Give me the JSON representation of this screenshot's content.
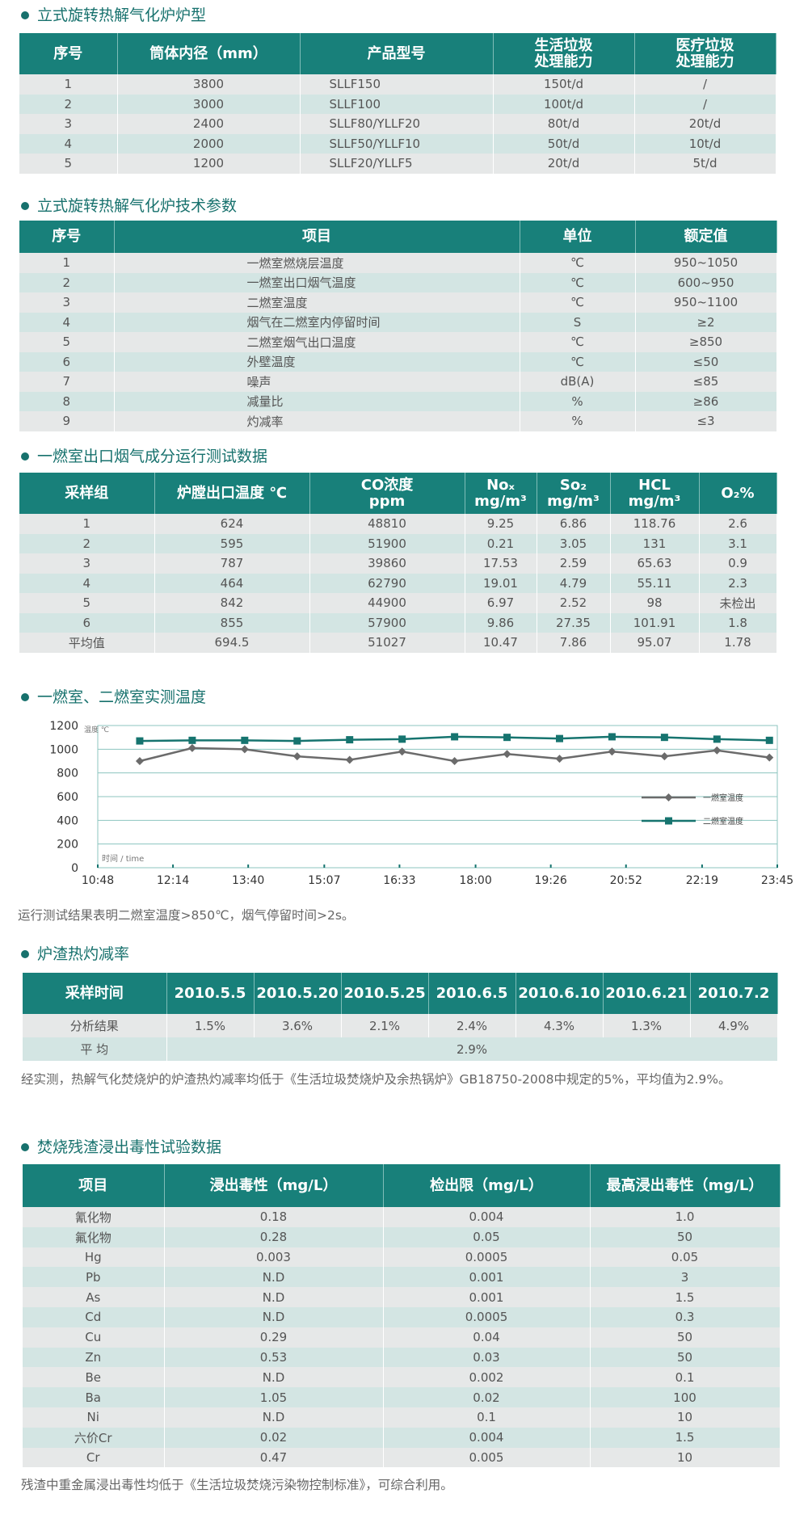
{
  "models": {
    "title": "立式旋转热解气化炉炉型",
    "header": [
      "序号",
      "筒体内径（mm）",
      "产品型号",
      "生活垃圾\n处理能力",
      "医疗垃圾\n处理能力"
    ],
    "rows": [
      [
        "1",
        "3800",
        "SLLF150",
        "150t/d",
        "/"
      ],
      [
        "2",
        "3000",
        "SLLF100",
        "100t/d",
        "/"
      ],
      [
        "3",
        "2400",
        "SLLF80/YLLF20",
        "80t/d",
        "20t/d"
      ],
      [
        "4",
        "2000",
        "SLLF50/YLLF10",
        "50t/d",
        "10t/d"
      ],
      [
        "5",
        "1200",
        "SLLF20/YLLF5",
        "20t/d",
        "5t/d"
      ]
    ]
  },
  "params": {
    "title": "立式旋转热解气化炉技术参数",
    "header": [
      "序号",
      "项目",
      "单位",
      "额定值"
    ],
    "rows": [
      [
        "1",
        "一燃室燃烧层温度",
        "℃",
        "950~1050"
      ],
      [
        "2",
        "一燃室出口烟气温度",
        "℃",
        "600~950"
      ],
      [
        "3",
        "二燃室温度",
        "℃",
        "950~1100"
      ],
      [
        "4",
        "烟气在二燃室内停留时间",
        "S",
        "≥2"
      ],
      [
        "5",
        "二燃室烟气出口温度",
        "℃",
        "≥850"
      ],
      [
        "6",
        "外壁温度",
        "℃",
        "≤50"
      ],
      [
        "7",
        "噪声",
        "dB(A)",
        "≤85"
      ],
      [
        "8",
        "减量比",
        "%",
        "≥86"
      ],
      [
        "9",
        "灼减率",
        "%",
        "≤3"
      ]
    ]
  },
  "flue_gas": {
    "title": "一燃室出口烟气成分运行测试数据",
    "header": [
      "采样组",
      "炉膛出口温度 ℃",
      "CO浓度\nppm",
      "Noₓ\nmg/m³",
      "So₂\nmg/m³",
      "HCL\nmg/m³",
      "O₂%"
    ],
    "rows": [
      [
        "1",
        "624",
        "48810",
        "9.25",
        "6.86",
        "118.76",
        "2.6"
      ],
      [
        "2",
        "595",
        "51900",
        "0.21",
        "3.05",
        "131",
        "3.1"
      ],
      [
        "3",
        "787",
        "39860",
        "17.53",
        "2.59",
        "65.63",
        "0.9"
      ],
      [
        "4",
        "464",
        "62790",
        "19.01",
        "4.79",
        "55.11",
        "2.3"
      ],
      [
        "5",
        "842",
        "44900",
        "6.97",
        "2.52",
        "98",
        "未检出"
      ],
      [
        "6",
        "855",
        "57900",
        "9.86",
        "27.35",
        "101.91",
        "1.8"
      ],
      [
        "平均值",
        "694.5",
        "51027",
        "10.47",
        "7.86",
        "95.07",
        "1.78"
      ]
    ]
  },
  "chart_data": {
    "type": "line",
    "title": "一燃室、二燃室实测温度",
    "xlabel": "时间 / time",
    "ylabel": "温度 ℃",
    "x": [
      696,
      756,
      816,
      876,
      936,
      996,
      1056,
      1116,
      1176,
      1236,
      1296,
      1356,
      1416
    ],
    "xlim": [
      648,
      1425
    ],
    "xticks": [
      {
        "value": 648,
        "label": "10:48"
      },
      {
        "value": 734,
        "label": "12:14"
      },
      {
        "value": 820,
        "label": "13:40"
      },
      {
        "value": 907,
        "label": "15:07"
      },
      {
        "value": 993,
        "label": "16:33"
      },
      {
        "value": 1080,
        "label": "18:00"
      },
      {
        "value": 1166,
        "label": "19:26"
      },
      {
        "value": 1252,
        "label": "20:52"
      },
      {
        "value": 1339,
        "label": "22:19"
      },
      {
        "value": 1425,
        "label": "23:45"
      }
    ],
    "ylim": [
      0,
      1200
    ],
    "yticks": [
      0,
      200,
      400,
      600,
      800,
      1000,
      1200
    ],
    "grid": true,
    "legend": "right",
    "series": [
      {
        "name": "一燃室温度",
        "color": "#6b6b6b",
        "marker": "diamond",
        "values": [
          900,
          1010,
          1000,
          940,
          910,
          980,
          900,
          960,
          920,
          980,
          940,
          990,
          930
        ]
      },
      {
        "name": "二燃室温度",
        "color": "#16746f",
        "marker": "square",
        "values": [
          1070,
          1075,
          1075,
          1070,
          1080,
          1085,
          1105,
          1100,
          1090,
          1105,
          1100,
          1085,
          1075
        ]
      }
    ],
    "note": "运行测试结果表明二燃室温度>850℃，烟气停留时间>2s。"
  },
  "slag": {
    "title": "炉渣热灼减率",
    "header": [
      "采样时间",
      "2010.5.5",
      "2010.5.20",
      "2010.5.25",
      "2010.6.5",
      "2010.6.10",
      "2010.6.21",
      "2010.7.2"
    ],
    "rows": [
      [
        "分析结果",
        "1.5%",
        "3.6%",
        "2.1%",
        "2.4%",
        "4.3%",
        "1.3%",
        "4.9%"
      ],
      [
        "平 均",
        "2.9%"
      ]
    ],
    "note": "经实测，热解气化焚烧炉的炉渣热灼减率均低于《生活垃圾焚烧炉及余热锅炉》GB18750-2008中规定的5%，平均值为2.9%。"
  },
  "leaching": {
    "title": "焚烧残渣浸出毒性试验数据",
    "header": [
      "项目",
      "浸出毒性（mg/L）",
      "检出限（mg/L）",
      "最高浸出毒性（mg/L）"
    ],
    "rows": [
      [
        "氰化物",
        "0.18",
        "0.004",
        "1.0"
      ],
      [
        "氟化物",
        "0.28",
        "0.05",
        "50"
      ],
      [
        "Hg",
        "0.003",
        "0.0005",
        "0.05"
      ],
      [
        "Pb",
        "N.D",
        "0.001",
        "3"
      ],
      [
        "As",
        "N.D",
        "0.001",
        "1.5"
      ],
      [
        "Cd",
        "N.D",
        "0.0005",
        "0.3"
      ],
      [
        "Cu",
        "0.29",
        "0.04",
        "50"
      ],
      [
        "Zn",
        "0.53",
        "0.03",
        "50"
      ],
      [
        "Be",
        "N.D",
        "0.002",
        "0.1"
      ],
      [
        "Ba",
        "1.05",
        "0.02",
        "100"
      ],
      [
        "Ni",
        "N.D",
        "0.1",
        "10"
      ],
      [
        "六价Cr",
        "0.02",
        "0.004",
        "1.5"
      ],
      [
        "Cr",
        "0.47",
        "0.005",
        "10"
      ]
    ],
    "note": "残渣中重金属浸出毒性均低于《生活垃圾焚烧污染物控制标准》，可综合利用。"
  }
}
